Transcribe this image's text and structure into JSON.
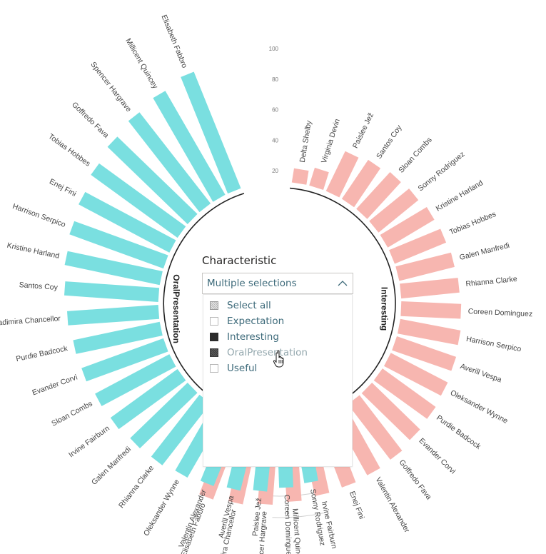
{
  "chart_data": {
    "type": "bar",
    "subtype": "radial-bar",
    "tick_labels": [
      "100",
      "80",
      "60",
      "40",
      "20"
    ],
    "ylim": [
      0,
      100
    ],
    "grid": true,
    "groups": [
      {
        "name": "Interesting",
        "color": "#f7b6b0",
        "categories": [
          "Delta Shelby",
          "Virginia Devin",
          "Paislee Jež",
          "Santos Coy",
          "Sloan Combs",
          "Sonny Rodriguez",
          "Kristine Harland",
          "Tobias Hobbes",
          "Galen Manfredi",
          "Rhianna Clarke",
          "Coreen Dominguez",
          "Harrison Serpico",
          "Averill Vespa",
          "Oleksander Wynne",
          "Purdie Badcock",
          "Evander Corvi",
          "Goffredo Fava",
          "Valentin Alexander",
          "Enej Fini",
          "Irvine Fairburn",
          "Millicent Quincey",
          "Spencer Hargrave",
          "Vladimira Chancellor",
          "Elisabeth Fabbro"
        ],
        "values": [
          10,
          13,
          31,
          33,
          35,
          36,
          38,
          39,
          40,
          41,
          42,
          43,
          44,
          45,
          46,
          47,
          49,
          50,
          51,
          52,
          54,
          56,
          58,
          60
        ]
      },
      {
        "name": "OralPresentation",
        "color": "#7adfe0",
        "categories": [
          "Elisabeth Fabbro",
          "Millicent Quincey",
          "Spencer Hargrave",
          "Goffredo Fava",
          "Tobias Hobbes",
          "Enej Fini",
          "Harrison Serpico",
          "Kristine Harland",
          "Santos Coy",
          "Vladimira Chancellor",
          "Purdie Badcock",
          "Evander Corvi",
          "Sloan Combs",
          "Irvine Fairburn",
          "Galen Manfredi",
          "Rhianna Clarke",
          "Oleksander Wynne",
          "Valentin Alexander",
          "Averill Vespa",
          "Paislee Jež",
          "Coreen Dominguez",
          "Sonny Rodriguez"
        ],
        "values": [
          88,
          84,
          81,
          78,
          75,
          72,
          70,
          68,
          66,
          64,
          62,
          61,
          59,
          58,
          56,
          55,
          53,
          51,
          49,
          47,
          44,
          42
        ]
      }
    ]
  },
  "slicer": {
    "title": "Characteristic",
    "selected_text": "Multiple selections",
    "items": [
      {
        "label": "Select all",
        "state": "partial"
      },
      {
        "label": "Expectation",
        "state": "unchecked"
      },
      {
        "label": "Interesting",
        "state": "checked"
      },
      {
        "label": "OralPresentation",
        "state": "checked-hover"
      },
      {
        "label": "Useful",
        "state": "unchecked"
      }
    ]
  },
  "icons": {
    "dropdown": "chevron-up-icon",
    "cursor": "hand-pointer-icon"
  }
}
